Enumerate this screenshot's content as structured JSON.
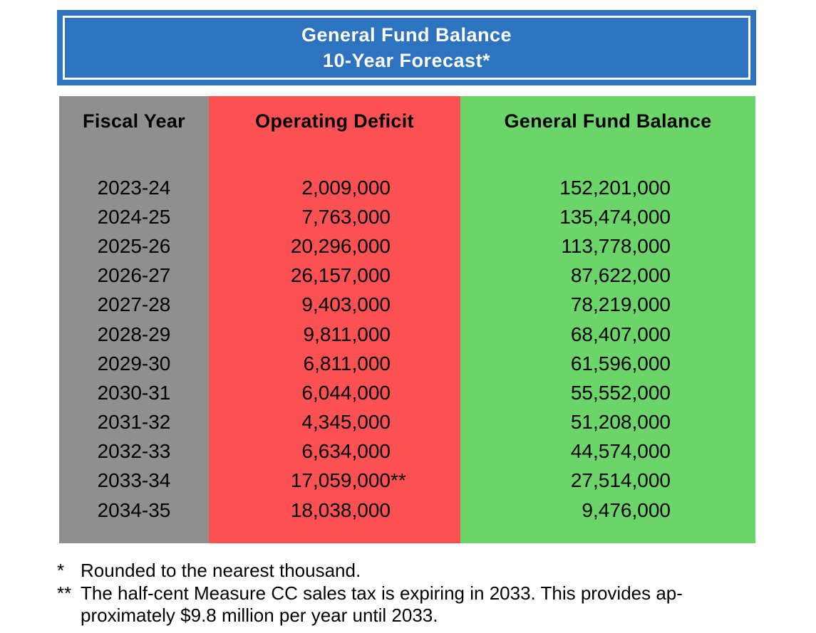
{
  "banner": {
    "title_line1": "General Fund Balance",
    "title_line2": "10-Year Forecast*"
  },
  "table": {
    "columns": [
      {
        "key": "year",
        "label": "Fiscal Year"
      },
      {
        "key": "deficit",
        "label": "Operating Deficit"
      },
      {
        "key": "balance",
        "label": "General Fund Balance"
      }
    ],
    "rows": [
      {
        "year": "2023-24",
        "deficit": "2,009,000",
        "note": "",
        "balance": "152,201,000"
      },
      {
        "year": "2024-25",
        "deficit": "7,763,000",
        "note": "",
        "balance": "135,474,000"
      },
      {
        "year": "2025-26",
        "deficit": "20,296,000",
        "note": "",
        "balance": "113,778,000"
      },
      {
        "year": "2026-27",
        "deficit": "26,157,000",
        "note": "",
        "balance": "87,622,000"
      },
      {
        "year": "2027-28",
        "deficit": "9,403,000",
        "note": "",
        "balance": "78,219,000"
      },
      {
        "year": "2028-29",
        "deficit": "9,811,000",
        "note": "",
        "balance": "68,407,000"
      },
      {
        "year": "2029-30",
        "deficit": "6,811,000",
        "note": "",
        "balance": "61,596,000"
      },
      {
        "year": "2030-31",
        "deficit": "6,044,000",
        "note": "",
        "balance": "55,552,000"
      },
      {
        "year": "2031-32",
        "deficit": "4,345,000",
        "note": "",
        "balance": "51,208,000"
      },
      {
        "year": "2032-33",
        "deficit": "6,634,000",
        "note": "",
        "balance": "44,574,000"
      },
      {
        "year": "2033-34",
        "deficit": "17,059,000",
        "note": "**",
        "balance": "27,514,000"
      },
      {
        "year": "2034-35",
        "deficit": "18,038,000",
        "note": "",
        "balance": "9,476,000"
      }
    ]
  },
  "footnotes": [
    {
      "marker": "*",
      "text": "Rounded to the nearest thousand."
    },
    {
      "marker": "**",
      "text": "The half-cent Measure CC sales tax is expiring in 2033. This provides ap-"
    },
    {
      "marker": "",
      "text": "proximately $9.8 million per year until 2033."
    }
  ],
  "colors": {
    "banner_blue": "#2d73bf",
    "fiscal_gray": "#8f8f8f",
    "deficit_red": "#fb5152",
    "balance_green": "#6bd56a",
    "border_white": "#ffffff",
    "text_black": "#000000"
  }
}
